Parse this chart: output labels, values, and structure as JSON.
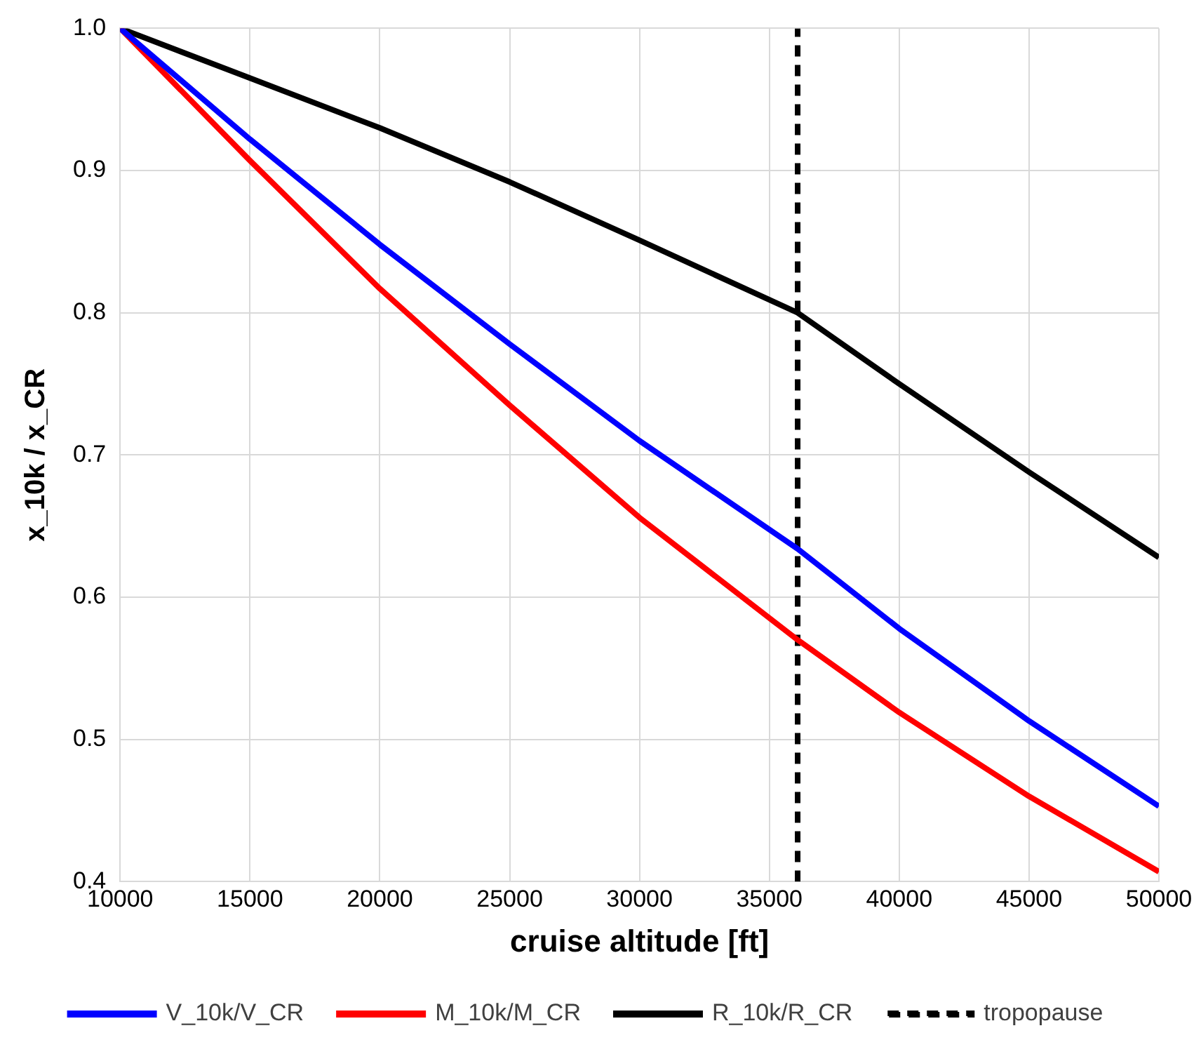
{
  "chart_data": {
    "type": "line",
    "xlabel": "cruise altitude [ft]",
    "ylabel": "x_10k / x_CR",
    "xlim": [
      10000,
      50000
    ],
    "xticks": [
      10000,
      15000,
      20000,
      25000,
      30000,
      35000,
      40000,
      45000,
      50000
    ],
    "ylim": [
      0.4,
      1.0
    ],
    "yticks": [
      0.4,
      0.5,
      0.6,
      0.7,
      0.8,
      0.9,
      {
        "value": 1,
        "label": "1.0"
      }
    ],
    "grid": true,
    "legend": "bottom",
    "marker": "none",
    "x": [
      10000,
      15000,
      20000,
      25000,
      30000,
      36089,
      40000,
      45000,
      50000
    ],
    "series": [
      {
        "name": "V_10k/V_CR",
        "color": "#0000ff",
        "values": [
          1.0,
          0.922,
          0.848,
          0.778,
          0.71,
          0.634,
          0.578,
          0.513,
          0.453
        ]
      },
      {
        "name": "M_10k/M_CR",
        "color": "#ff0000",
        "values": [
          1.0,
          0.907,
          0.817,
          0.735,
          0.656,
          0.57,
          0.519,
          0.46,
          0.407
        ]
      },
      {
        "name": "R_10k/R_CR",
        "color": "#000000",
        "values": [
          1.0,
          0.965,
          0.93,
          0.892,
          0.851,
          0.8,
          0.75,
          0.688,
          0.628
        ]
      },
      {
        "name": "tropopause",
        "color": "#000000",
        "line_style": "dashed",
        "x": [
          36089,
          36089
        ],
        "values": [
          0.4,
          1.0
        ]
      }
    ]
  }
}
